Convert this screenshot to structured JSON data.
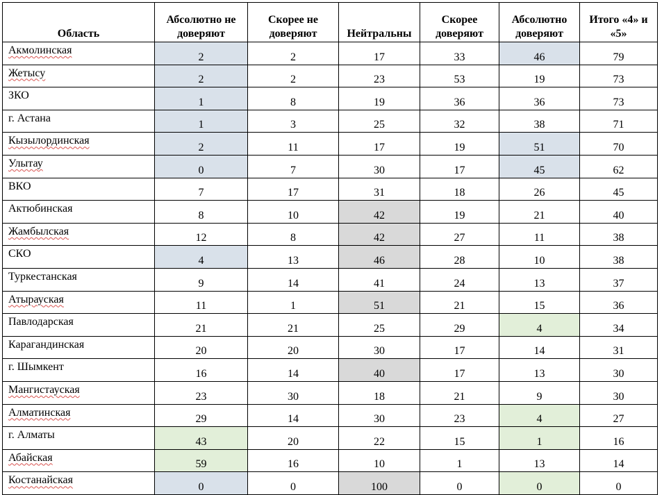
{
  "headers": {
    "region": "Область",
    "c1": "Абсолютно не доверяют",
    "c2": "Скорее не доверяют",
    "c3": "Нейтральны",
    "c4": "Скорее доверяют",
    "c5": "Абсолютно доверяют",
    "c6": "Итого «4» и «5»"
  },
  "highlight_colors": {
    "blue": "#d9e1ea",
    "gray": "#d9d9d9",
    "green": "#e2efd9"
  },
  "rows": [
    {
      "region": "Акмолинская",
      "spell": true,
      "v": [
        "2",
        "2",
        "17",
        "33",
        "46",
        "79"
      ],
      "hl": [
        "blue",
        null,
        null,
        null,
        "blue",
        null
      ]
    },
    {
      "region": "Жетысу",
      "spell": true,
      "v": [
        "2",
        "2",
        "23",
        "53",
        "19",
        "73"
      ],
      "hl": [
        "blue",
        null,
        null,
        null,
        null,
        null
      ]
    },
    {
      "region": "ЗКО",
      "spell": false,
      "v": [
        "1",
        "8",
        "19",
        "36",
        "36",
        "73"
      ],
      "hl": [
        "blue",
        null,
        null,
        null,
        null,
        null
      ]
    },
    {
      "region": "г. Астана",
      "spell": false,
      "v": [
        "1",
        "3",
        "25",
        "32",
        "38",
        "71"
      ],
      "hl": [
        "blue",
        null,
        null,
        null,
        null,
        null
      ]
    },
    {
      "region": "Кызылординская",
      "spell": true,
      "v": [
        "2",
        "11",
        "17",
        "19",
        "51",
        "70"
      ],
      "hl": [
        "blue",
        null,
        null,
        null,
        "blue",
        null
      ]
    },
    {
      "region": "Улытау",
      "spell": true,
      "v": [
        "0",
        "7",
        "30",
        "17",
        "45",
        "62"
      ],
      "hl": [
        "blue",
        null,
        null,
        null,
        "blue",
        null
      ]
    },
    {
      "region": "ВКО",
      "spell": false,
      "v": [
        "7",
        "17",
        "31",
        "18",
        "26",
        "45"
      ],
      "hl": [
        null,
        null,
        null,
        null,
        null,
        null
      ]
    },
    {
      "region": "Актюбинская",
      "spell": false,
      "v": [
        "8",
        "10",
        "42",
        "19",
        "21",
        "40"
      ],
      "hl": [
        null,
        null,
        "gray",
        null,
        null,
        null
      ]
    },
    {
      "region": "Жамбылская",
      "spell": true,
      "v": [
        "12",
        "8",
        "42",
        "27",
        "11",
        "38"
      ],
      "hl": [
        null,
        null,
        "gray",
        null,
        null,
        null
      ]
    },
    {
      "region": "СКО",
      "spell": false,
      "v": [
        "4",
        "13",
        "46",
        "28",
        "10",
        "38"
      ],
      "hl": [
        "blue",
        null,
        "gray",
        null,
        null,
        null
      ]
    },
    {
      "region": "Туркестанская",
      "spell": false,
      "v": [
        "9",
        "14",
        "41",
        "24",
        "13",
        "37"
      ],
      "hl": [
        null,
        null,
        null,
        null,
        null,
        null
      ]
    },
    {
      "region": "Атырауская",
      "spell": true,
      "v": [
        "11",
        "1",
        "51",
        "21",
        "15",
        "36"
      ],
      "hl": [
        null,
        null,
        "gray",
        null,
        null,
        null
      ]
    },
    {
      "region": "Павлодарская",
      "spell": false,
      "v": [
        "21",
        "21",
        "25",
        "29",
        "4",
        "34"
      ],
      "hl": [
        null,
        null,
        null,
        null,
        "green",
        null
      ]
    },
    {
      "region": "Карагандинская",
      "spell": false,
      "v": [
        "20",
        "20",
        "30",
        "17",
        "14",
        "31"
      ],
      "hl": [
        null,
        null,
        null,
        null,
        null,
        null
      ]
    },
    {
      "region": "г. Шымкент",
      "spell": false,
      "v": [
        "16",
        "14",
        "40",
        "17",
        "13",
        "30"
      ],
      "hl": [
        null,
        null,
        "gray",
        null,
        null,
        null
      ]
    },
    {
      "region": "Мангистауская",
      "spell": true,
      "v": [
        "23",
        "30",
        "18",
        "21",
        "9",
        "30"
      ],
      "hl": [
        null,
        null,
        null,
        null,
        null,
        null
      ]
    },
    {
      "region": "Алматинская",
      "spell": true,
      "v": [
        "29",
        "14",
        "30",
        "23",
        "4",
        "27"
      ],
      "hl": [
        null,
        null,
        null,
        null,
        "green",
        null
      ]
    },
    {
      "region": "г. Алматы",
      "spell": false,
      "v": [
        "43",
        "20",
        "22",
        "15",
        "1",
        "16"
      ],
      "hl": [
        "green",
        null,
        null,
        null,
        "green",
        null
      ]
    },
    {
      "region": "Абайская",
      "spell": true,
      "v": [
        "59",
        "16",
        "10",
        "1",
        "13",
        "14"
      ],
      "hl": [
        "green",
        null,
        null,
        null,
        null,
        null
      ]
    },
    {
      "region": "Костанайская",
      "spell": true,
      "v": [
        "0",
        "0",
        "100",
        "0",
        "0",
        "0"
      ],
      "hl": [
        "blue",
        null,
        "gray",
        null,
        "green",
        null
      ]
    }
  ]
}
